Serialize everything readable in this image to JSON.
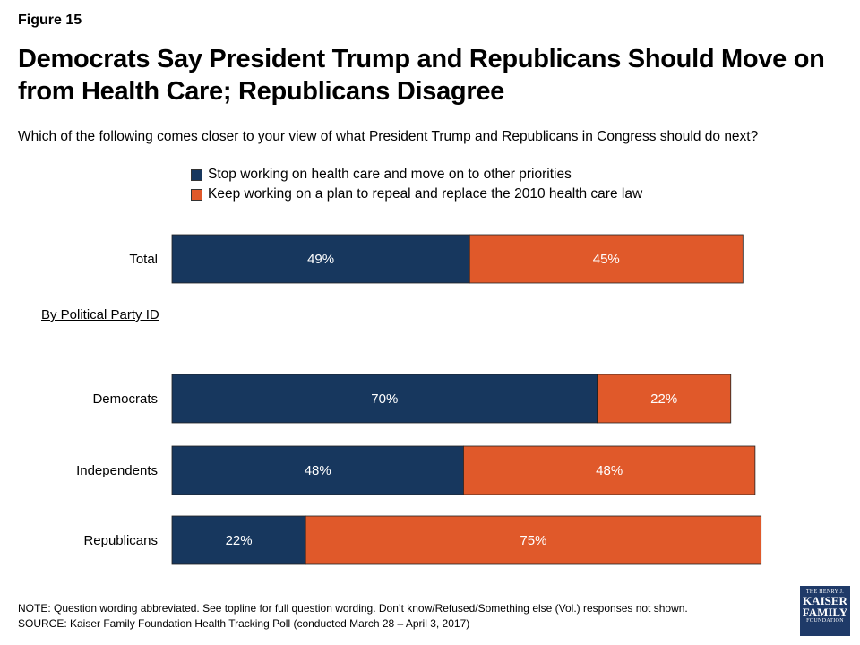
{
  "header": {
    "figure_label": "Figure 15",
    "title": "Democrats Say President Trump and Republicans Should Move on from Health Care; Republicans Disagree",
    "subtitle": "Which of the following comes closer to your view of what President Trump and Republicans in Congress should do next?"
  },
  "section_label": "By Political Party ID",
  "chart_data": {
    "type": "bar",
    "orientation": "horizontal",
    "stacked": true,
    "categories": [
      "Total",
      "Democrats",
      "Independents",
      "Republicans"
    ],
    "series": [
      {
        "name": "Stop working on health care and move on to other priorities",
        "values": [
          49,
          70,
          48,
          22
        ],
        "labels": [
          "49%",
          "70%",
          "48%",
          "22%"
        ],
        "color": "#17375e"
      },
      {
        "name": "Keep working on a plan to repeal and replace the 2010 health care law",
        "values": [
          45,
          22,
          48,
          75
        ],
        "labels": [
          "45%",
          "22%",
          "48%",
          "75%"
        ],
        "color": "#e0592a"
      }
    ],
    "xlim": [
      0,
      100
    ],
    "legend_position": "top",
    "grid": false
  },
  "footer": {
    "note": "NOTE: Question wording abbreviated. See topline for full question wording. Don’t know/Refused/Something else (Vol.) responses not shown.",
    "source": "SOURCE: Kaiser Family Foundation Health Tracking Poll (conducted March 28 – April 3, 2017)"
  },
  "logo": {
    "line1": "THE HENRY J.",
    "line2": "KAISER",
    "line3": "FAMILY",
    "line4": "FOUNDATION"
  }
}
